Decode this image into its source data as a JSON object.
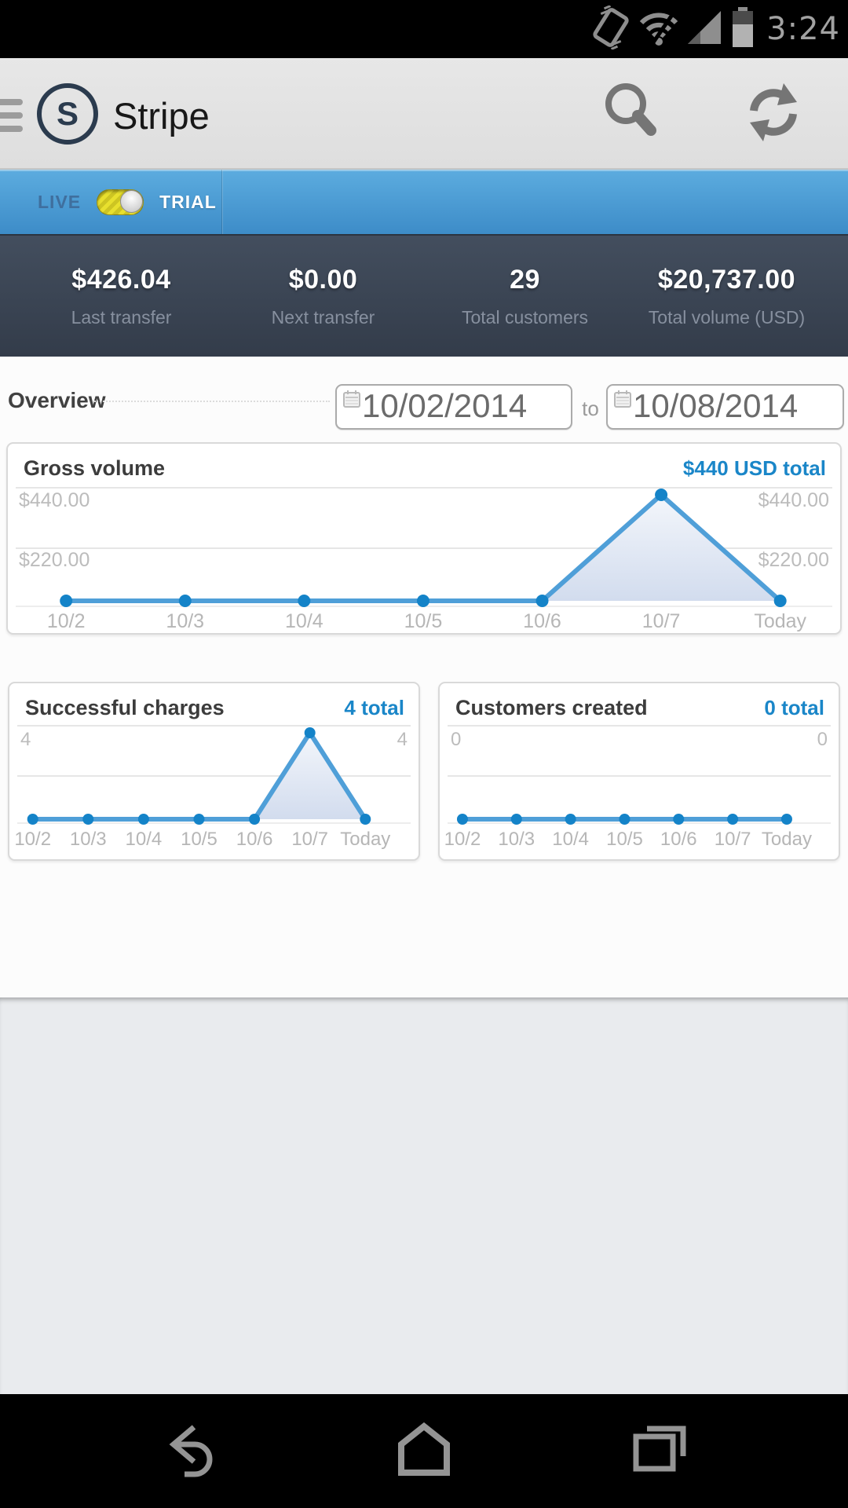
{
  "status_bar": {
    "time": "3:24"
  },
  "app_bar": {
    "logo_letter": "S",
    "title": "Stripe"
  },
  "mode_bar": {
    "live_label": "LIVE",
    "trial_label": "TRIAL",
    "toggle_state": "trial"
  },
  "stats": [
    {
      "value": "$426.04",
      "label": "Last transfer"
    },
    {
      "value": "$0.00",
      "label": "Next transfer"
    },
    {
      "value": "29",
      "label": "Total customers"
    },
    {
      "value": "$20,737.00",
      "label": "Total volume (USD)"
    }
  ],
  "overview": {
    "title": "Overview",
    "date_from": "10/02/2014",
    "to_label": "to",
    "date_to": "10/08/2014"
  },
  "chart_data": [
    {
      "type": "area",
      "title": "Gross volume",
      "total_label": "$440 USD total",
      "categories": [
        "10/2",
        "10/3",
        "10/4",
        "10/5",
        "10/6",
        "10/7",
        "Today"
      ],
      "values": [
        0,
        0,
        0,
        0,
        0,
        440,
        0
      ],
      "ylim": [
        0,
        440
      ],
      "yticks": [
        {
          "row": 0,
          "value": 440,
          "label": "$440.00"
        },
        {
          "row": 1,
          "value": 220,
          "label": "$220.00"
        }
      ],
      "ytick_sides": "both",
      "grid": true,
      "legend": "none",
      "xlabel": "",
      "ylabel": ""
    },
    {
      "type": "area",
      "title": "Successful charges",
      "total_label": "4 total",
      "categories": [
        "10/2",
        "10/3",
        "10/4",
        "10/5",
        "10/6",
        "10/7",
        "Today"
      ],
      "values": [
        0,
        0,
        0,
        0,
        0,
        4,
        0
      ],
      "ylim": [
        0,
        4
      ],
      "yticks": [
        {
          "row": 0,
          "value": 4,
          "label": "4"
        }
      ],
      "ytick_sides": "both",
      "grid": true,
      "legend": "none",
      "xlabel": "",
      "ylabel": ""
    },
    {
      "type": "area",
      "title": "Customers created",
      "total_label": "0 total",
      "categories": [
        "10/2",
        "10/3",
        "10/4",
        "10/5",
        "10/6",
        "10/7",
        "Today"
      ],
      "values": [
        0,
        0,
        0,
        0,
        0,
        0,
        0
      ],
      "ylim": [
        0,
        0
      ],
      "yticks": [
        {
          "row": 0,
          "value": 0,
          "label": "0"
        }
      ],
      "ytick_sides": "both",
      "grid": true,
      "legend": "none",
      "xlabel": "",
      "ylabel": ""
    }
  ],
  "colors": {
    "accent_blue": "#1a86c8",
    "line_blue": "#4f9fd8",
    "dot_blue": "#1483c8",
    "fill_top": "#f3f6fb",
    "fill_bottom": "#d2dcee",
    "grid_gray": "#e6e6e6",
    "mode_bar_top": "#5cacdf",
    "mode_bar_bottom": "#3d8cc8",
    "stats_bar": "#3a4452",
    "toggle_yellow": "#e8e02e"
  },
  "icons": {
    "status": [
      "vibrate-icon",
      "wifi-icon",
      "signal-icon",
      "battery-icon"
    ],
    "app_bar": [
      "drawer-handle-icon",
      "search-icon",
      "refresh-icon"
    ],
    "date_fields": [
      "calendar-icon"
    ],
    "nav": [
      "back-icon",
      "home-icon",
      "recents-icon"
    ]
  }
}
